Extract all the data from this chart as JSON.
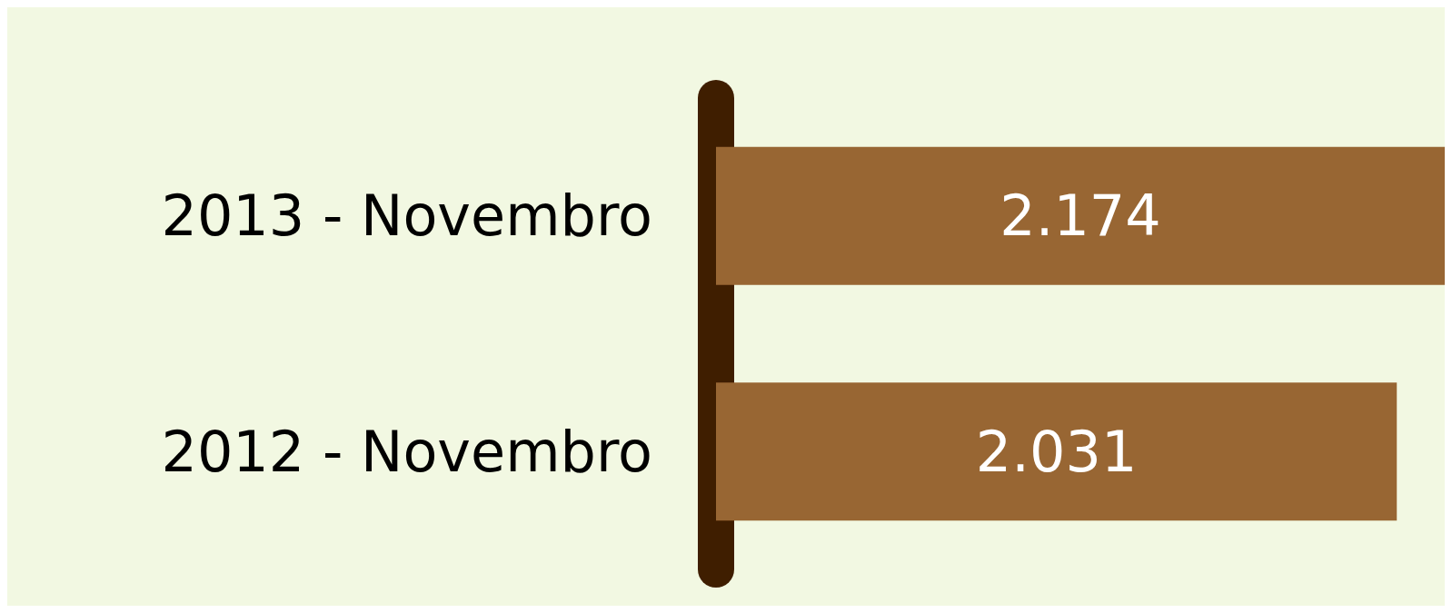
{
  "chart_data": {
    "type": "bar",
    "orientation": "horizontal",
    "categories": [
      "2013 - Novembro",
      "2012 - Novembro"
    ],
    "values": [
      2174,
      2031
    ],
    "color": "#986633",
    "value_labels": [
      "2.174",
      "2.031"
    ],
    "tick_labels": "y"
  }
}
